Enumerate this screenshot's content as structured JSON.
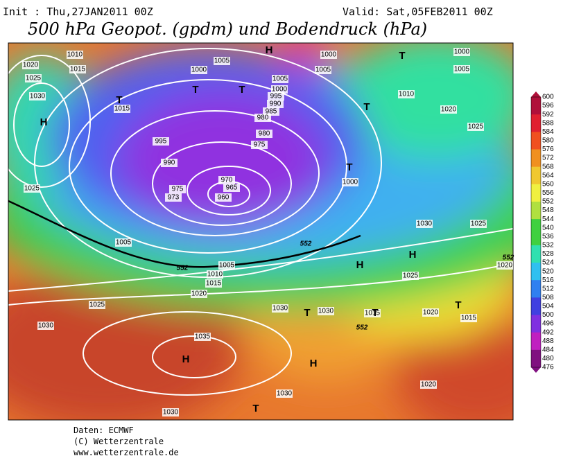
{
  "header": {
    "init": "Init : Thu,27JAN2011 00Z",
    "valid": "Valid: Sat,05FEB2011 00Z",
    "title": "500 hPa Geopot. (gpdm) und Bodendruck (hPa)"
  },
  "colorbar": {
    "labels": [
      600,
      596,
      592,
      588,
      584,
      580,
      576,
      572,
      568,
      564,
      560,
      556,
      552,
      548,
      544,
      540,
      536,
      532,
      528,
      524,
      520,
      516,
      512,
      508,
      504,
      500,
      496,
      492,
      488,
      484,
      480,
      476
    ]
  },
  "map": {
    "isobar_labels": [
      1010,
      1015,
      1020,
      1025,
      1030,
      1015,
      1005,
      1000,
      1000,
      1005,
      1000,
      1005,
      1010,
      1020,
      1025,
      1005,
      1000,
      995,
      990,
      985,
      980,
      980,
      975,
      995,
      990,
      970,
      965,
      975,
      973,
      960,
      1025,
      1000,
      1005,
      1005,
      1010,
      1015,
      1020,
      1025,
      1030,
      1030,
      1030,
      1035,
      1030,
      1025,
      1020,
      1025,
      1020,
      1015,
      1015,
      1030,
      1020,
      1030
    ],
    "centers": [
      "H",
      "T",
      "H",
      "T",
      "T",
      "T",
      "T",
      "T",
      "H",
      "H",
      "T",
      "T",
      "T",
      "H",
      "H",
      "T"
    ],
    "geopotential_labels": [
      552,
      552,
      552,
      552
    ]
  },
  "footer": {
    "source": "Daten: ECMWF",
    "copyright": "(C) Wetterzentrale",
    "url": "www.wetterzentrale.de"
  }
}
